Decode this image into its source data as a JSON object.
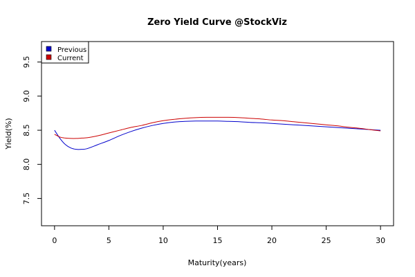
{
  "chart_data": {
    "type": "line",
    "title": "Zero Yield Curve @StockViz",
    "xlabel": "Maturity(years)",
    "ylabel": "Yield(%)",
    "xlim": [
      -1.2,
      31.2
    ],
    "ylim": [
      7.1,
      9.8
    ],
    "xticks": [
      0,
      5,
      10,
      15,
      20,
      25,
      30
    ],
    "yticks": [
      7.5,
      8.0,
      8.5,
      9.0,
      9.5
    ],
    "ytick_labels": [
      "7.5",
      "8.0",
      "8.5",
      "9.0",
      "9.5"
    ],
    "grid": false,
    "legend_position": "top-left",
    "series": [
      {
        "name": "Previous",
        "color": "#0000cc",
        "x": [
          0,
          0.5,
          1,
          1.5,
          2,
          2.5,
          3,
          4,
          5,
          6,
          7,
          8,
          9,
          10,
          11,
          12,
          13,
          14,
          15,
          16,
          17,
          18,
          19,
          20,
          21,
          22,
          23,
          24,
          25,
          26,
          27,
          28,
          29,
          30
        ],
        "y": [
          8.5,
          8.38,
          8.29,
          8.24,
          8.22,
          8.22,
          8.23,
          8.29,
          8.35,
          8.42,
          8.48,
          8.53,
          8.57,
          8.6,
          8.62,
          8.63,
          8.635,
          8.635,
          8.635,
          8.63,
          8.625,
          8.615,
          8.61,
          8.6,
          8.59,
          8.58,
          8.57,
          8.56,
          8.55,
          8.54,
          8.53,
          8.52,
          8.51,
          8.5
        ]
      },
      {
        "name": "Current",
        "color": "#cc0000",
        "x": [
          0,
          0.5,
          1,
          1.5,
          2,
          2.5,
          3,
          4,
          5,
          6,
          7,
          8,
          9,
          10,
          11,
          12,
          13,
          14,
          15,
          16,
          17,
          18,
          19,
          20,
          21,
          22,
          23,
          24,
          25,
          26,
          27,
          28,
          29,
          30
        ],
        "y": [
          8.44,
          8.4,
          8.385,
          8.38,
          8.38,
          8.385,
          8.39,
          8.42,
          8.46,
          8.5,
          8.54,
          8.57,
          8.61,
          8.64,
          8.66,
          8.675,
          8.685,
          8.69,
          8.69,
          8.69,
          8.685,
          8.675,
          8.665,
          8.65,
          8.64,
          8.625,
          8.61,
          8.595,
          8.58,
          8.565,
          8.545,
          8.53,
          8.51,
          8.49
        ]
      }
    ]
  }
}
